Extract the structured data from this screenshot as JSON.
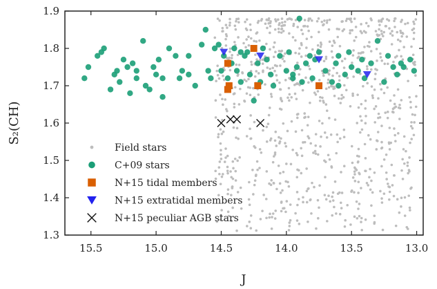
{
  "chart_data": {
    "type": "scatter",
    "title": "",
    "xlabel": "J",
    "ylabel": "S₂(CH)",
    "xlim": [
      15.7,
      12.95
    ],
    "ylim": [
      1.3,
      1.9
    ],
    "x_inverted": true,
    "grid": false,
    "legend_position": "lower-left",
    "x_ticks": [
      "15.5",
      "15.0",
      "14.5",
      "14.0",
      "13.5",
      "13.0"
    ],
    "x_tick_values": [
      15.5,
      15.0,
      14.5,
      14.0,
      13.5,
      13.0
    ],
    "y_ticks": [
      "1.3",
      "1.4",
      "1.5",
      "1.6",
      "1.7",
      "1.8",
      "1.9"
    ],
    "y_tick_values": [
      1.3,
      1.4,
      1.5,
      1.6,
      1.7,
      1.8,
      1.9
    ],
    "series": [
      {
        "name": "Field stars",
        "marker": "small-circle",
        "color": "#bdbdbd",
        "count": 900,
        "x_range": [
          13.0,
          14.55
        ],
        "y_range": [
          1.31,
          1.88
        ],
        "points": []
      },
      {
        "name": "C+09 stars",
        "marker": "circle",
        "color": "#1b9e77",
        "points": [
          [
            15.55,
            1.72
          ],
          [
            15.52,
            1.75
          ],
          [
            15.45,
            1.78
          ],
          [
            15.42,
            1.79
          ],
          [
            15.4,
            1.8
          ],
          [
            15.35,
            1.69
          ],
          [
            15.32,
            1.73
          ],
          [
            15.3,
            1.74
          ],
          [
            15.28,
            1.71
          ],
          [
            15.25,
            1.77
          ],
          [
            15.22,
            1.75
          ],
          [
            15.2,
            1.68
          ],
          [
            15.18,
            1.76
          ],
          [
            15.15,
            1.72
          ],
          [
            15.1,
            1.82
          ],
          [
            15.08,
            1.7
          ],
          [
            15.05,
            1.69
          ],
          [
            15.02,
            1.75
          ],
          [
            15.0,
            1.73
          ],
          [
            14.98,
            1.77
          ],
          [
            14.95,
            1.72
          ],
          [
            14.9,
            1.8
          ],
          [
            14.85,
            1.78
          ],
          [
            14.82,
            1.72
          ],
          [
            14.8,
            1.74
          ],
          [
            14.75,
            1.78
          ],
          [
            14.7,
            1.7
          ],
          [
            14.65,
            1.81
          ],
          [
            14.62,
            1.85
          ],
          [
            14.6,
            1.74
          ],
          [
            14.58,
            1.72
          ],
          [
            14.55,
            1.8
          ],
          [
            14.52,
            1.81
          ],
          [
            14.5,
            1.74
          ],
          [
            14.48,
            1.78
          ],
          [
            14.45,
            1.72
          ],
          [
            14.42,
            1.76
          ],
          [
            14.4,
            1.8
          ],
          [
            14.38,
            1.74
          ],
          [
            14.35,
            1.71
          ],
          [
            14.32,
            1.78
          ],
          [
            14.3,
            1.79
          ],
          [
            14.28,
            1.73
          ],
          [
            14.25,
            1.66
          ],
          [
            14.22,
            1.76
          ],
          [
            14.2,
            1.71
          ],
          [
            14.18,
            1.8
          ],
          [
            14.15,
            1.77
          ],
          [
            14.12,
            1.73
          ],
          [
            14.1,
            1.7
          ],
          [
            14.05,
            1.78
          ],
          [
            14.0,
            1.74
          ],
          [
            13.98,
            1.79
          ],
          [
            13.95,
            1.72
          ],
          [
            13.92,
            1.75
          ],
          [
            13.9,
            1.88
          ],
          [
            13.88,
            1.71
          ],
          [
            13.85,
            1.76
          ],
          [
            13.82,
            1.78
          ],
          [
            13.8,
            1.72
          ],
          [
            13.78,
            1.77
          ],
          [
            13.75,
            1.79
          ],
          [
            13.7,
            1.74
          ],
          [
            13.65,
            1.71
          ],
          [
            13.62,
            1.76
          ],
          [
            13.6,
            1.78
          ],
          [
            13.55,
            1.73
          ],
          [
            13.52,
            1.79
          ],
          [
            13.5,
            1.75
          ],
          [
            13.45,
            1.74
          ],
          [
            13.42,
            1.77
          ],
          [
            13.4,
            1.72
          ],
          [
            13.35,
            1.76
          ],
          [
            13.3,
            1.82
          ],
          [
            13.25,
            1.71
          ],
          [
            13.22,
            1.78
          ],
          [
            13.18,
            1.75
          ],
          [
            13.15,
            1.73
          ],
          [
            13.12,
            1.76
          ],
          [
            13.1,
            1.75
          ],
          [
            13.05,
            1.77
          ],
          [
            13.02,
            1.74
          ],
          [
            14.95,
            1.67
          ],
          [
            15.15,
            1.74
          ],
          [
            14.75,
            1.73
          ],
          [
            14.35,
            1.79
          ],
          [
            13.95,
            1.73
          ],
          [
            13.6,
            1.7
          ]
        ]
      },
      {
        "name": "N+15 tidal members",
        "marker": "square",
        "color": "#d95f02",
        "points": [
          [
            14.45,
            1.76
          ],
          [
            14.45,
            1.69
          ],
          [
            14.44,
            1.7
          ],
          [
            14.25,
            1.8
          ],
          [
            14.22,
            1.7
          ],
          [
            13.75,
            1.7
          ]
        ]
      },
      {
        "name": "N+15 extratidal members",
        "marker": "triangle-down",
        "color": "#2222ee",
        "points": [
          [
            14.48,
            1.79
          ],
          [
            14.2,
            1.78
          ],
          [
            13.75,
            1.77
          ],
          [
            13.38,
            1.73
          ]
        ]
      },
      {
        "name": "N+15 peculiar AGB stars",
        "marker": "x",
        "color": "#111111",
        "points": [
          [
            14.5,
            1.6
          ],
          [
            14.43,
            1.61
          ],
          [
            14.38,
            1.61
          ],
          [
            14.2,
            1.6
          ]
        ]
      }
    ]
  }
}
